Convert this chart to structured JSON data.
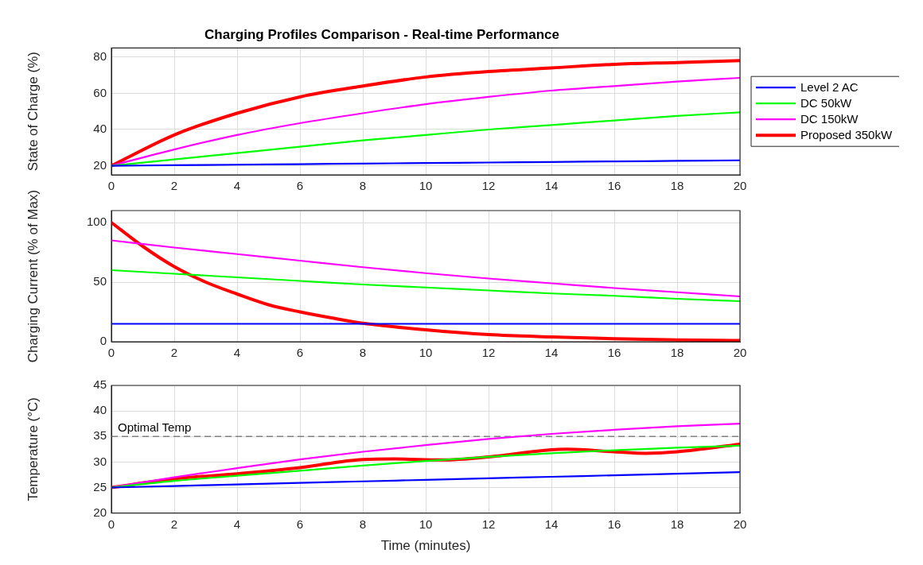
{
  "chart_data": [
    {
      "type": "line",
      "title": "Charging Profiles Comparison - Real-time Performance",
      "ylabel": "State of Charge (%)",
      "x": [
        0,
        2,
        4,
        6,
        8,
        10,
        12,
        14,
        16,
        18,
        20
      ],
      "xlim": [
        0,
        20
      ],
      "xticks": [
        0,
        2,
        4,
        6,
        8,
        10,
        12,
        14,
        16,
        18,
        20
      ],
      "ylim": [
        15,
        85
      ],
      "yticks": [
        20,
        40,
        60,
        80
      ],
      "grid": true,
      "legend": "right",
      "line_style": "solid",
      "marker": "none",
      "series": [
        {
          "name": "Level 2 AC",
          "color": "#0000ff",
          "values": [
            20,
            20.3,
            20.6,
            20.9,
            21.2,
            21.5,
            21.8,
            22.1,
            22.4,
            22.7,
            23
          ]
        },
        {
          "name": "DC 50kW",
          "color": "#00ff00",
          "values": [
            20,
            23.5,
            27,
            30.5,
            34,
            37,
            40,
            42.5,
            45,
            47.5,
            49.5
          ]
        },
        {
          "name": "DC 150kW",
          "color": "#ff00ff",
          "values": [
            20,
            29,
            37,
            43.5,
            49,
            54,
            58,
            61.5,
            64,
            66.5,
            68.5
          ]
        },
        {
          "name": "Proposed 350kW",
          "color": "#ff0000",
          "values": [
            20,
            37,
            49,
            58,
            64,
            69,
            72,
            74,
            76,
            77,
            78
          ]
        }
      ]
    },
    {
      "type": "line",
      "ylabel": "Charging Current (% of Max)",
      "x": [
        0,
        2,
        4,
        6,
        8,
        10,
        12,
        14,
        16,
        18,
        20
      ],
      "xlim": [
        0,
        20
      ],
      "xticks": [
        0,
        2,
        4,
        6,
        8,
        10,
        12,
        14,
        16,
        18,
        20
      ],
      "ylim": [
        0,
        110
      ],
      "yticks": [
        0,
        50,
        100
      ],
      "grid": true,
      "line_style": "solid",
      "marker": "none",
      "series": [
        {
          "color": "#0000ff",
          "values": [
            15,
            15,
            15,
            15,
            15,
            15,
            15,
            15,
            15,
            15,
            15
          ]
        },
        {
          "color": "#00ff00",
          "values": [
            60,
            57,
            54,
            51,
            48,
            45.5,
            43,
            40.5,
            38.5,
            36,
            34
          ]
        },
        {
          "color": "#ff00ff",
          "values": [
            85,
            79,
            73.5,
            68,
            62.5,
            57.5,
            53,
            49,
            45,
            41.5,
            38
          ]
        },
        {
          "color": "#ff0000",
          "x": [
            0,
            1,
            2,
            3,
            4,
            5,
            6,
            7,
            8,
            10,
            12,
            14,
            16,
            18,
            20
          ],
          "values": [
            100,
            80,
            63,
            50,
            40,
            31,
            25,
            20,
            15.5,
            10,
            6,
            4,
            2.5,
            1.5,
            1
          ]
        }
      ]
    },
    {
      "type": "line",
      "ylabel": "Temperature (°C)",
      "xlabel": "Time (minutes)",
      "x": [
        0,
        2,
        4,
        6,
        8,
        10,
        12,
        14,
        16,
        18,
        20
      ],
      "xlim": [
        0,
        20
      ],
      "xticks": [
        0,
        2,
        4,
        6,
        8,
        10,
        12,
        14,
        16,
        18,
        20
      ],
      "ylim": [
        20,
        45
      ],
      "yticks": [
        20,
        25,
        30,
        35,
        40,
        45
      ],
      "grid": true,
      "line_style": "solid",
      "marker": "none",
      "ref_lines": [
        {
          "axis": "y",
          "value": 35,
          "label": "Optimal Temp",
          "color": "#808080",
          "line_style": "dashed"
        }
      ],
      "series": [
        {
          "color": "#0000ff",
          "values": [
            25,
            25.3,
            25.6,
            25.9,
            26.2,
            26.5,
            26.8,
            27.1,
            27.4,
            27.7,
            28
          ]
        },
        {
          "color": "#00ff00",
          "values": [
            25,
            26.3,
            27.3,
            28.3,
            29.3,
            30.2,
            31,
            31.7,
            32.3,
            32.8,
            33.2
          ]
        },
        {
          "color": "#ff00ff",
          "values": [
            25,
            27,
            28.8,
            30.5,
            32,
            33.3,
            34.5,
            35.5,
            36.3,
            37,
            37.5
          ]
        },
        {
          "color": "#ff0000",
          "x": [
            0,
            2,
            4,
            6,
            8,
            9,
            10.5,
            12,
            14,
            14.5,
            16,
            17,
            18,
            20
          ],
          "values": [
            25,
            26.7,
            27.7,
            28.9,
            30.5,
            30.6,
            30.4,
            31,
            32.4,
            32.5,
            32,
            31.7,
            32,
            33.5
          ]
        }
      ]
    }
  ]
}
